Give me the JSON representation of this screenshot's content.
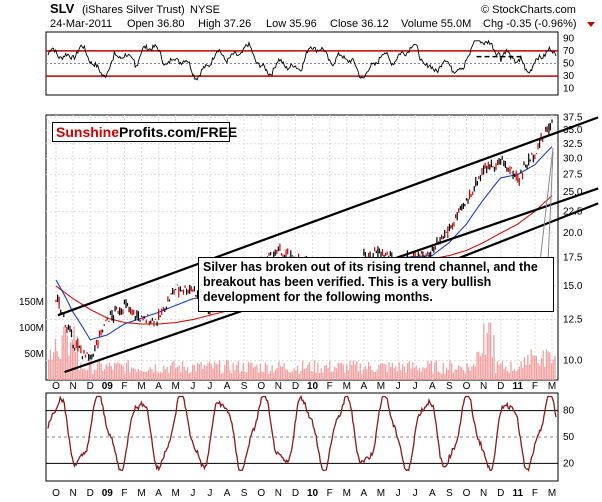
{
  "header": {
    "ticker": "SLV",
    "name": "(iShares Silver Trust)",
    "exchange": "NYSE",
    "credit": "© StockCharts.com",
    "date": "24-Mar-2011",
    "open": "Open 36.80",
    "high": "High 37.26",
    "low": "Low 35.96",
    "close": "Close 36.12",
    "volume": "Volume 55.0M",
    "chg": "Chg -0.35 (-0.96%)"
  },
  "logo": {
    "part1": "Sunshine",
    "part2": "Profits.com/FREE"
  },
  "annotation": "Silver has broken out of its rising trend channel, and the breakout has been verified. This is a very bullish development for the following months.",
  "colors": {
    "up": "#000000",
    "down": "#cc0000",
    "ma50": "#1f3fbf",
    "ma200": "#d01010",
    "rsi_ref": "#c00000",
    "stoch": "#8b1a1a",
    "volume": "#f0a0a0"
  },
  "chart_data": [
    {
      "type": "line",
      "title": "RSI",
      "y_ticks": [
        "90",
        "70",
        "50",
        "30",
        "10"
      ],
      "ylim": [
        0,
        100
      ],
      "reference_lines": [
        70,
        30
      ],
      "note": "oscillator peaks near 80 in Feb-09, Dec-10 and Mar-11"
    },
    {
      "type": "line",
      "title": "SLV price with trend channel",
      "x_tick_labels": [
        "O",
        "N",
        "D",
        "09",
        "F",
        "M",
        "A",
        "M",
        "J",
        "J",
        "A",
        "S",
        "O",
        "N",
        "D",
        "10",
        "F",
        "M",
        "A",
        "M",
        "J",
        "J",
        "A",
        "S",
        "O",
        "N",
        "D",
        "11",
        "F",
        "M"
      ],
      "y_ticks": [
        "37.5",
        "35.0",
        "32.5",
        "30.0",
        "27.5",
        "25.0",
        "22.5",
        "20.0",
        "17.5",
        "15.0",
        "12.5",
        "10.0"
      ],
      "ylim": [
        9,
        38
      ],
      "y_scale": "log",
      "series": [
        {
          "values": [
            14.0,
            11.0,
            10.0,
            12.5,
            13.5,
            12.5,
            12.5,
            14.8,
            14.8,
            13.3,
            14.2,
            16.3,
            16.8,
            18.0,
            17.3,
            16.5,
            16.0,
            16.5,
            17.5,
            18.0,
            17.0,
            17.5,
            17.8,
            20.5,
            23.5,
            28.5,
            29.5,
            27.0,
            31.0,
            36.5
          ]
        },
        {
          "values": [
            15.5,
            13.0,
            11.2,
            11.5,
            12.2,
            12.6,
            13.0,
            13.5,
            14.0,
            14.2,
            14.0,
            15.0,
            16.0,
            16.8,
            17.2,
            16.8,
            16.4,
            16.5,
            17.0,
            17.4,
            17.5,
            17.6,
            17.7,
            19.0,
            21.0,
            24.0,
            27.0,
            27.5,
            29.0,
            32.0
          ]
        },
        {
          "values": [
            15.0,
            14.0,
            13.2,
            12.6,
            12.3,
            12.2,
            12.2,
            12.3,
            12.5,
            12.8,
            13.1,
            13.6,
            14.1,
            14.6,
            15.1,
            15.5,
            15.8,
            16.1,
            16.4,
            16.7,
            17.0,
            17.2,
            17.4,
            17.7,
            18.2,
            19.0,
            20.0,
            21.0,
            22.5,
            24.5
          ]
        }
      ],
      "channel_lines": [
        {
          "from": [
            "O",
            12.8
          ],
          "to": [
            "M",
            37.5
          ]
        },
        {
          "from": [
            "O",
            9.4
          ],
          "to": [
            "M",
            25.5
          ]
        },
        {
          "from": [
            "A",
            16.8
          ],
          "to": [
            "M",
            23.5
          ]
        }
      ]
    },
    {
      "type": "bar",
      "title": "Volume",
      "y_ticks": [
        "150M",
        "100M",
        "50M"
      ],
      "note": "volume spikes near 140M in Oct-08 and Nov-10"
    },
    {
      "type": "line",
      "title": "Stochastic",
      "y_ticks": [
        "80",
        "50",
        "20"
      ],
      "ylim": [
        0,
        100
      ],
      "reference_lines": [
        80,
        50,
        20
      ],
      "x_tick_labels": [
        "O",
        "N",
        "D",
        "09",
        "F",
        "M",
        "A",
        "M",
        "J",
        "J",
        "A",
        "S",
        "O",
        "N",
        "D",
        "10",
        "F",
        "M",
        "A",
        "M",
        "J",
        "J",
        "A",
        "S",
        "O",
        "N",
        "D",
        "11",
        "F",
        "M"
      ],
      "note": "oscillates between roughly 15 and 95"
    }
  ]
}
